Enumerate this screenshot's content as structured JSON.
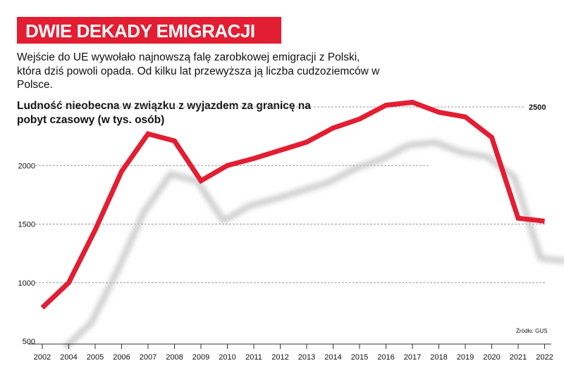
{
  "title": "DWIE DEKADY EMIGRACJI",
  "intro": "Wejście do UE wywołało najnowszą falę zarobkowej emigracji z Polski, która dziś powoli opada. Od kilku lat przewyższa ją liczba cudzoziemców w Polsce.",
  "source": "Źródło: GUS",
  "colors": {
    "accent": "#e31e32",
    "shadow": "#c8c8c8"
  },
  "chart_data": {
    "type": "line",
    "title": "Ludność nieobecna w związku z wyjazdem za granicę na pobyt czasowy (w tys. osób)",
    "categories": [
      "2002",
      "2004",
      "2005",
      "2006",
      "2007",
      "2008",
      "2009",
      "2010",
      "2011",
      "2012",
      "2013",
      "2014",
      "2015",
      "2016",
      "2017",
      "2018",
      "2019",
      "2020",
      "2021",
      "2022"
    ],
    "series": [
      {
        "values": [
          786,
          1000,
          1450,
          1950,
          2270,
          2210,
          1870,
          2000,
          2060,
          2130,
          2200,
          2320,
          2397,
          2515,
          2540,
          2455,
          2415,
          2240,
          1550,
          1525
        ]
      }
    ],
    "yticks": [
      500,
      1000,
      1500,
      2000,
      2500
    ],
    "ylim": [
      500,
      2500
    ],
    "grid": "dashed horizontal",
    "legend": "none"
  }
}
